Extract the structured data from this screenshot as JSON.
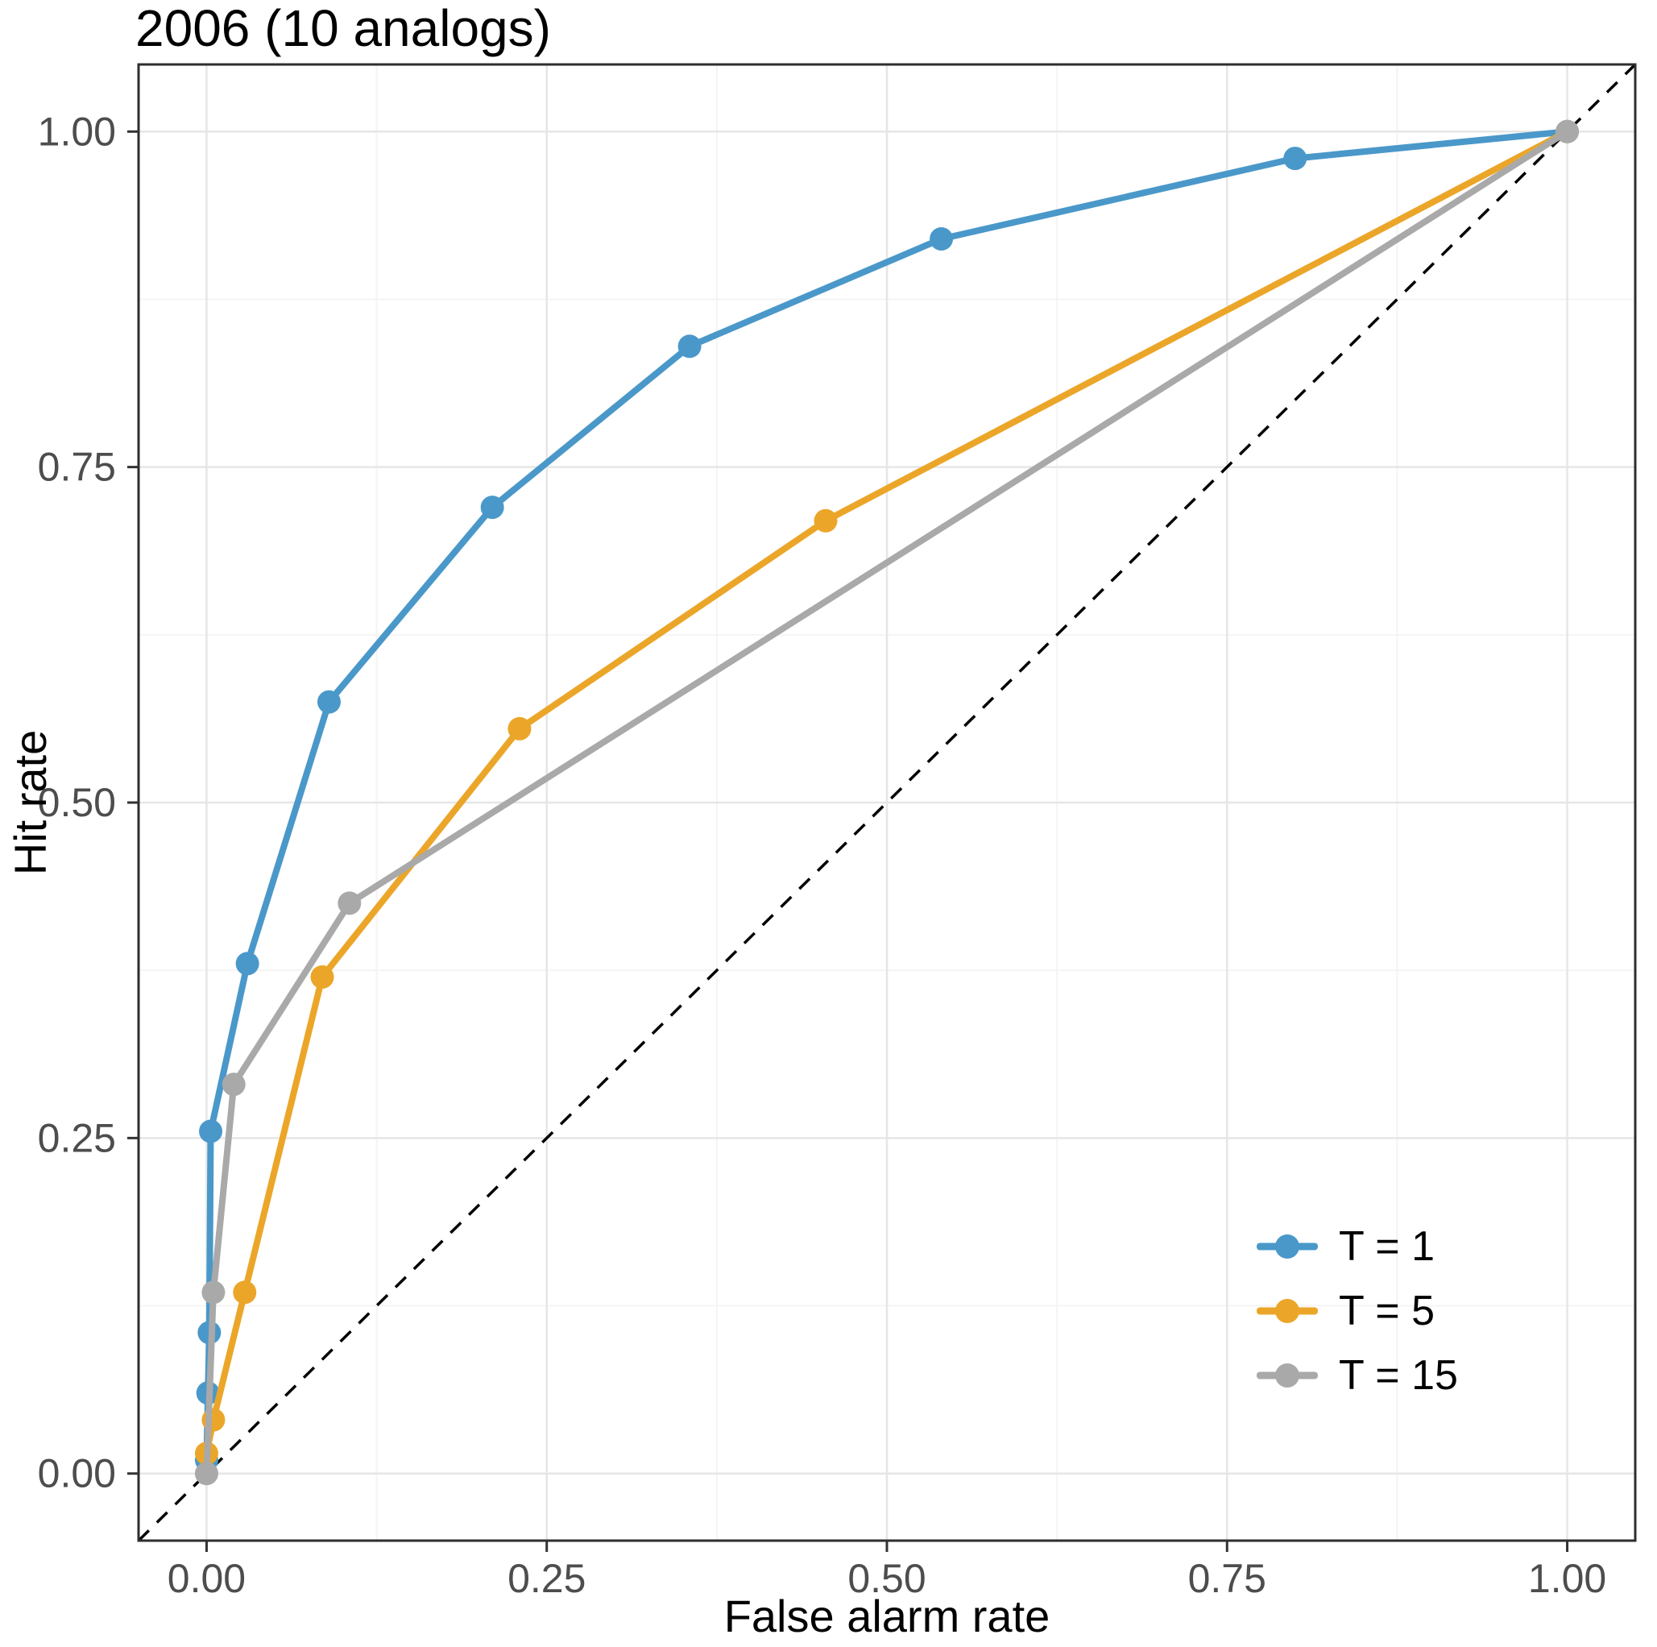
{
  "chart_data": {
    "type": "line",
    "title": "2006 (10 analogs)",
    "xlabel": "False alarm rate",
    "ylabel": "Hit rate",
    "xlim": [
      -0.05,
      1.05
    ],
    "ylim": [
      -0.05,
      1.05
    ],
    "xticks": [
      0,
      0.25,
      0.5,
      0.75,
      1
    ],
    "yticks": [
      0,
      0.25,
      0.5,
      0.75,
      1
    ],
    "x_tick_labels": [
      "0.00",
      "0.25",
      "0.50",
      "0.75",
      "1.00"
    ],
    "y_tick_labels": [
      "0.00",
      "0.25",
      "0.50",
      "0.75",
      "1.00"
    ],
    "grid": true,
    "panel_border": true,
    "legend_position": "inside bottom-right",
    "reference_line": {
      "type": "diagonal y=x",
      "style": "dashed",
      "color": "#000000"
    },
    "series": [
      {
        "name": "T = 1",
        "color": "#4A98C9",
        "points": [
          [
            0,
            0.01
          ],
          [
            0.001,
            0.06
          ],
          [
            0.002,
            0.105
          ],
          [
            0.003,
            0.255
          ],
          [
            0.03,
            0.38
          ],
          [
            0.09,
            0.575
          ],
          [
            0.21,
            0.72
          ],
          [
            0.355,
            0.84
          ],
          [
            0.54,
            0.92
          ],
          [
            0.8,
            0.98
          ],
          [
            1,
            1
          ]
        ]
      },
      {
        "name": "T = 5",
        "color": "#EBA629",
        "points": [
          [
            0,
            0.015
          ],
          [
            0.005,
            0.04
          ],
          [
            0.028,
            0.135
          ],
          [
            0.085,
            0.37
          ],
          [
            0.23,
            0.555
          ],
          [
            0.455,
            0.71
          ],
          [
            1,
            1
          ]
        ]
      },
      {
        "name": "T = 15",
        "color": "#A9A9A9",
        "points": [
          [
            0,
            0
          ],
          [
            0.005,
            0.135
          ],
          [
            0.02,
            0.29
          ],
          [
            0.105,
            0.425
          ],
          [
            1,
            1
          ]
        ]
      }
    ]
  }
}
